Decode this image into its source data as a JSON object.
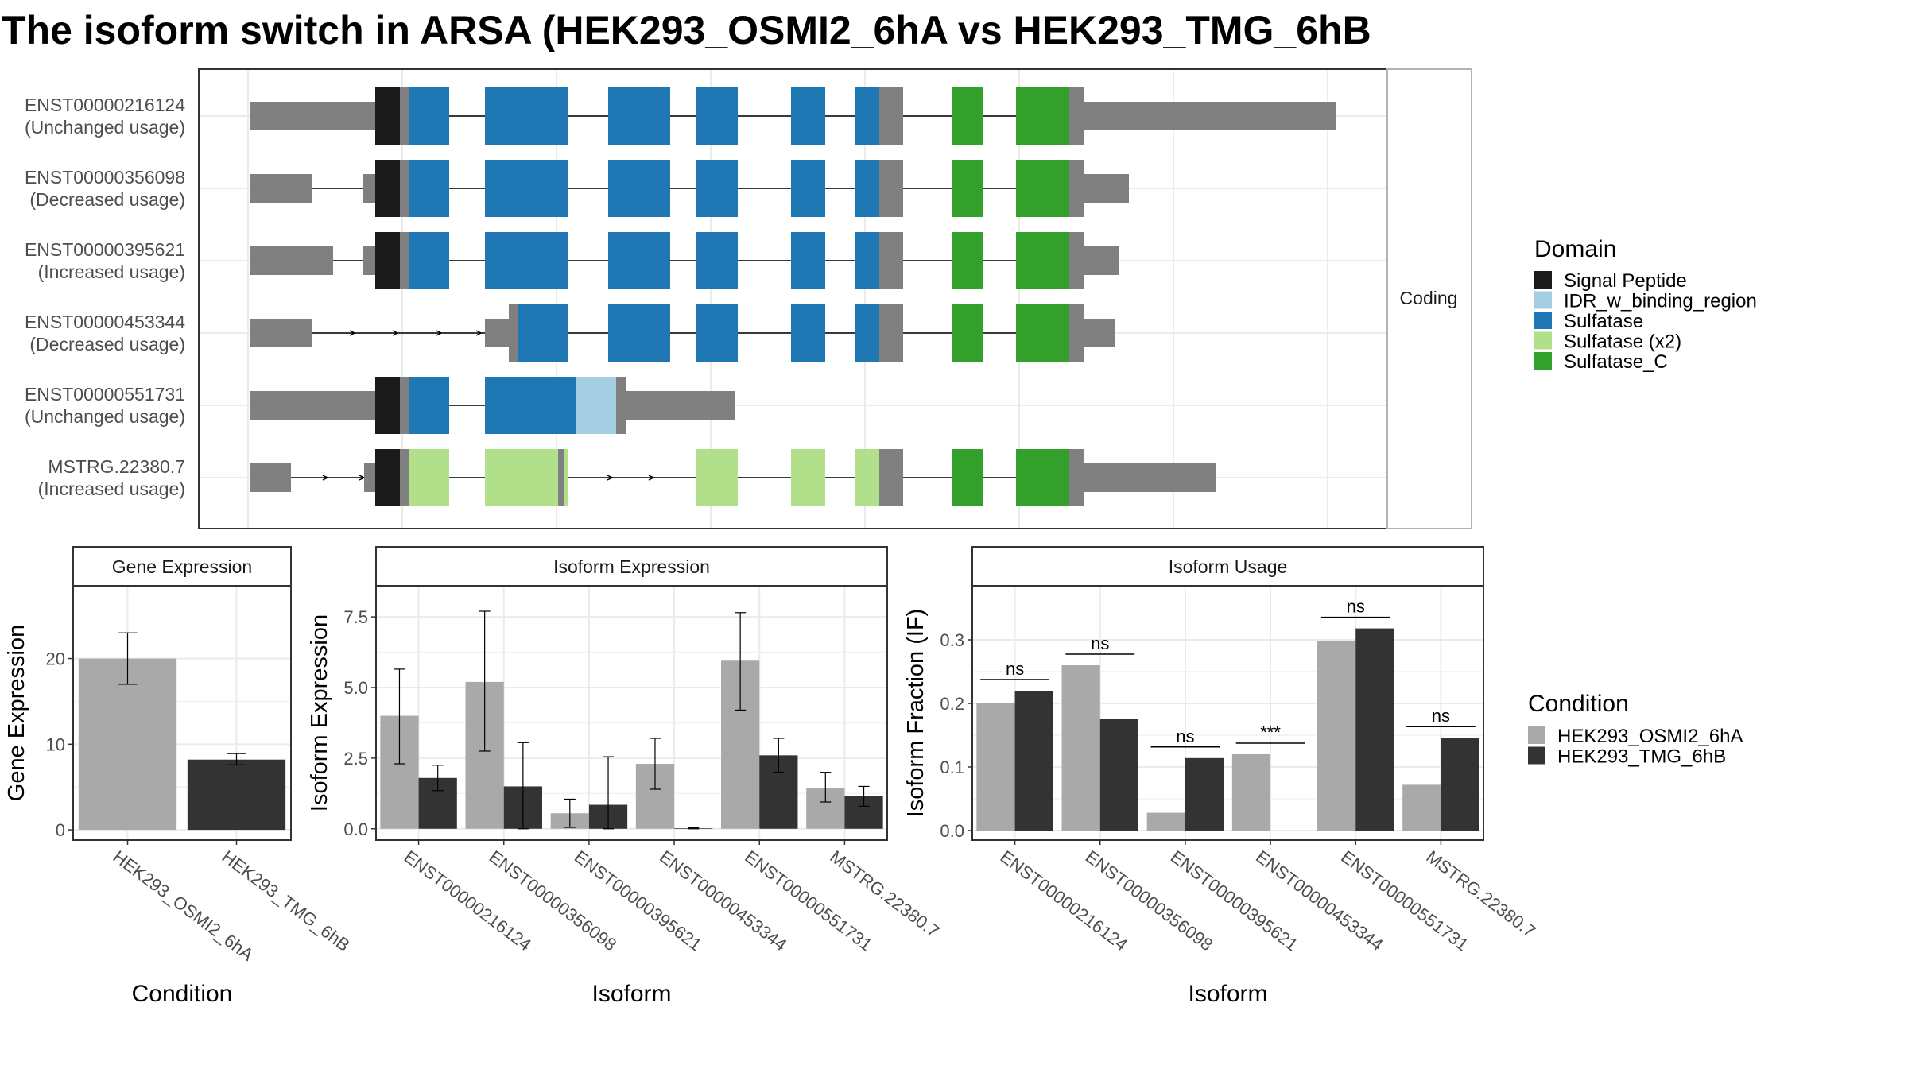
{
  "title": "The isoform switch in ARSA (HEK293_OSMI2_6hA vs HEK293_TMG_6hB",
  "colors": {
    "utr": "#808080",
    "signal_peptide": "#1a1a1a",
    "idr": "#a6cee3",
    "sulfatase": "#1f78b4",
    "sulfatase_x2": "#b2df8a",
    "sulfatase_c": "#33a02c",
    "cond_a": "#a9a9a9",
    "cond_b": "#333333",
    "panel_border": "#333333",
    "strip_fill": "#ffffff",
    "grid": "#ebebeb"
  },
  "structure": {
    "facet_label": "Coding",
    "transcripts": [
      {
        "id": "ENST00000216124",
        "usage": "(Unchanged usage)"
      },
      {
        "id": "ENST00000356098",
        "usage": "(Decreased usage)"
      },
      {
        "id": "ENST00000395621",
        "usage": "(Increased usage)"
      },
      {
        "id": "ENST00000453344",
        "usage": "(Decreased usage)"
      },
      {
        "id": "ENST00000551731",
        "usage": "(Unchanged usage)"
      },
      {
        "id": "MSTRG.22380.7",
        "usage": "(Increased usage)"
      }
    ]
  },
  "legend_domain": {
    "title": "Domain",
    "items": [
      {
        "label": "Signal Peptide",
        "color": "#1a1a1a"
      },
      {
        "label": "IDR_w_binding_region",
        "color": "#a6cee3"
      },
      {
        "label": "Sulfatase",
        "color": "#1f78b4"
      },
      {
        "label": "Sulfatase (x2)",
        "color": "#b2df8a"
      },
      {
        "label": "Sulfatase_C",
        "color": "#33a02c"
      }
    ]
  },
  "legend_condition": {
    "title": "Condition",
    "items": [
      {
        "label": "HEK293_OSMI2_6hA",
        "color": "#a9a9a9"
      },
      {
        "label": "HEK293_TMG_6hB",
        "color": "#333333"
      }
    ]
  },
  "chart_data": [
    {
      "type": "bar",
      "strip": "Gene Expression",
      "xlabel": "Condition",
      "ylabel": "Gene Expression",
      "categories": [
        "HEK293_OSMI2_6hA",
        "HEK293_TMG_6hB"
      ],
      "values": [
        20.0,
        8.2
      ],
      "err_low": [
        17.0,
        7.6
      ],
      "err_high": [
        23.0,
        8.9
      ],
      "ylim": [
        -1.2,
        28.5
      ],
      "yticks": [
        0,
        10,
        20
      ],
      "ytick_labels": [
        "0",
        "10",
        "20"
      ]
    },
    {
      "type": "bar",
      "strip": "Isoform Expression",
      "xlabel": "Isoform",
      "ylabel": "Isoform Expression",
      "categories": [
        "ENST00000216124",
        "ENST00000356098",
        "ENST00000395621",
        "ENST00000453344",
        "ENST00000551731",
        "MSTRG.22380.7"
      ],
      "series": [
        {
          "name": "HEK293_OSMI2_6hA",
          "values": [
            4.0,
            5.2,
            0.55,
            2.3,
            5.95,
            1.45
          ],
          "err_low": [
            2.3,
            2.75,
            0.05,
            1.4,
            4.2,
            0.95
          ],
          "err_high": [
            5.65,
            7.7,
            1.05,
            3.2,
            7.65,
            2.0
          ]
        },
        {
          "name": "HEK293_TMG_6hB",
          "values": [
            1.8,
            1.5,
            0.85,
            0.02,
            2.6,
            1.15
          ],
          "err_low": [
            1.35,
            0.0,
            0.0,
            0.0,
            2.0,
            0.8
          ],
          "err_high": [
            2.25,
            3.05,
            2.55,
            0.04,
            3.2,
            1.5
          ]
        }
      ],
      "ylim": [
        -0.4,
        8.6
      ],
      "yticks": [
        0,
        2.5,
        5,
        7.5
      ],
      "ytick_labels": [
        "0.0",
        "2.5",
        "5.0",
        "7.5"
      ]
    },
    {
      "type": "bar",
      "strip": "Isoform Usage",
      "xlabel": "Isoform",
      "ylabel": "Isoform Fraction (IF)",
      "categories": [
        "ENST00000216124",
        "ENST00000356098",
        "ENST00000395621",
        "ENST00000453344",
        "ENST00000551731",
        "MSTRG.22380.7"
      ],
      "series": [
        {
          "name": "HEK293_OSMI2_6hA",
          "values": [
            0.2,
            0.26,
            0.028,
            0.12,
            0.298,
            0.072
          ]
        },
        {
          "name": "HEK293_TMG_6hB",
          "values": [
            0.22,
            0.175,
            0.114,
            0.0,
            0.318,
            0.146
          ]
        }
      ],
      "significance": [
        "ns",
        "ns",
        "ns",
        "***",
        "ns",
        "ns"
      ],
      "ylim": [
        -0.015,
        0.385
      ],
      "yticks": [
        0,
        0.1,
        0.2,
        0.3
      ],
      "ytick_labels": [
        "0.0",
        "0.1",
        "0.2",
        "0.3"
      ]
    }
  ]
}
